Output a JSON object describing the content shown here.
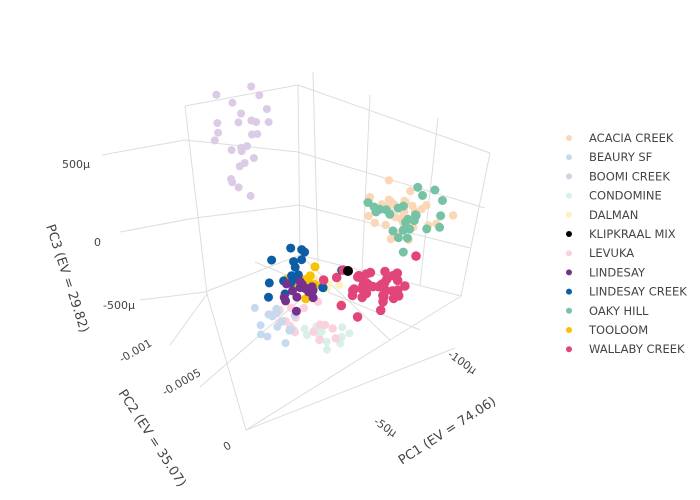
{
  "chart_data": {
    "type": "scatter",
    "is_3d": true,
    "axes": {
      "x": {
        "title": "PC1 (EV = 74.06)",
        "ticks": [
          "-100μ",
          "-50μ"
        ]
      },
      "y": {
        "title": "PC2 (EV = 35.07)",
        "ticks": [
          "-0.001",
          "-0.0005",
          "0"
        ]
      },
      "z": {
        "title": "PC3 (EV = 29.82)",
        "ticks": [
          "500μ",
          "0",
          "-500μ"
        ]
      }
    },
    "grid": true,
    "legend_position": "right",
    "series": [
      {
        "name": "ACACIA CREEK",
        "color": "#fbd7b8"
      },
      {
        "name": "BEAURY SF",
        "color": "#c6d9ee"
      },
      {
        "name": "BOOMI CREEK",
        "color": "#dccbe6"
      },
      {
        "name": "CONDOMINE",
        "color": "#d9f0ea"
      },
      {
        "name": "DALMAN",
        "color": "#fbf1bf"
      },
      {
        "name": "KLIPKRAAL MIX",
        "color": "#000000"
      },
      {
        "name": "LEVUKA",
        "color": "#fbd2dc"
      },
      {
        "name": "LINDESAY",
        "color": "#77308d"
      },
      {
        "name": "LINDESAY CREEK",
        "color": "#0c5da5"
      },
      {
        "name": "OAKY HILL",
        "color": "#75c2a4"
      },
      {
        "name": "TOOLOOM",
        "color": "#f7c200"
      },
      {
        "name": "WALLABY CREEK",
        "color": "#e2457a"
      }
    ]
  }
}
